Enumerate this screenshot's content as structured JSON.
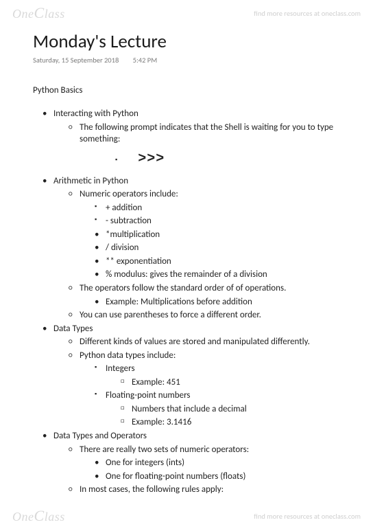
{
  "watermark": {
    "logo_left": "One",
    "logo_right": "lass",
    "logo_cap": "C",
    "link_text": "find more resources at oneclass.com"
  },
  "title": "Monday's Lecture",
  "date": "Saturday, 15 September 2018",
  "time": "5:42 PM",
  "section": "Python  Basics",
  "b1": {
    "h": "Interacting with Python",
    "s1": "The following prompt indicates that the Shell is waiting for you to type something:",
    "prompt": ">>>"
  },
  "b2": {
    "h": "Arithmetic in Python",
    "s1": "Numeric operators include:",
    "ops": {
      "add": "+ addition",
      "sub": "- subtraction",
      "mul": "*multiplication",
      "div": "/ division",
      "exp": "** exponentiation",
      "mod": "% modulus: gives the remainder of a division"
    },
    "s2": "The operators follow the standard order of of operations.",
    "s2a": "Example: Multiplications before addition",
    "s3": "You can use parentheses to force a different order."
  },
  "b3": {
    "h": "Data Types",
    "s1": "Different kinds of values are stored and manipulated differently.",
    "s2": "Python data types include:",
    "t1": "Integers",
    "t1a": "Example: 451",
    "t2": "Floating-point numbers",
    "t2a": "Numbers that include a decimal",
    "t2b": "Example: 3.1416"
  },
  "b4": {
    "h": "Data Types and Operators",
    "s1": "There are really two sets of numeric operators:",
    "s1a": "One for integers (ints)",
    "s1b": "One for floating-point numbers (floats)",
    "s2": "In most cases, the following rules apply:"
  }
}
